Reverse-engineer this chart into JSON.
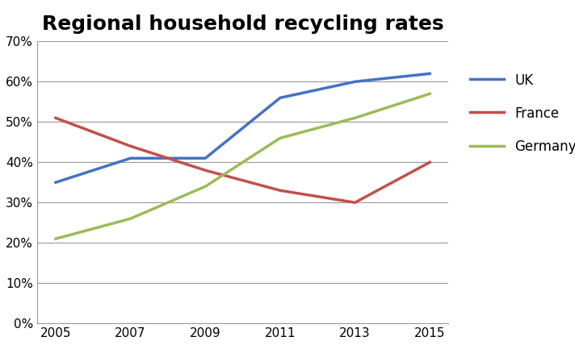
{
  "title": "Regional household recycling rates",
  "years": [
    2005,
    2007,
    2009,
    2011,
    2013,
    2015
  ],
  "UK": [
    35,
    41,
    41,
    56,
    60,
    62
  ],
  "France": [
    51,
    44,
    38,
    33,
    30,
    40
  ],
  "Germany": [
    21,
    26,
    34,
    46,
    51,
    57
  ],
  "UK_color": "#4472C4",
  "France_color": "#C0504D",
  "Germany_color": "#9BBB59",
  "ylim": [
    0,
    70
  ],
  "yticks": [
    0,
    10,
    20,
    30,
    40,
    50,
    60,
    70
  ],
  "line_width": 2.5,
  "marker": "none",
  "title_fontsize": 18,
  "legend_fontsize": 12,
  "tick_fontsize": 11,
  "background_color": "#ffffff",
  "grid_color": "#999999"
}
